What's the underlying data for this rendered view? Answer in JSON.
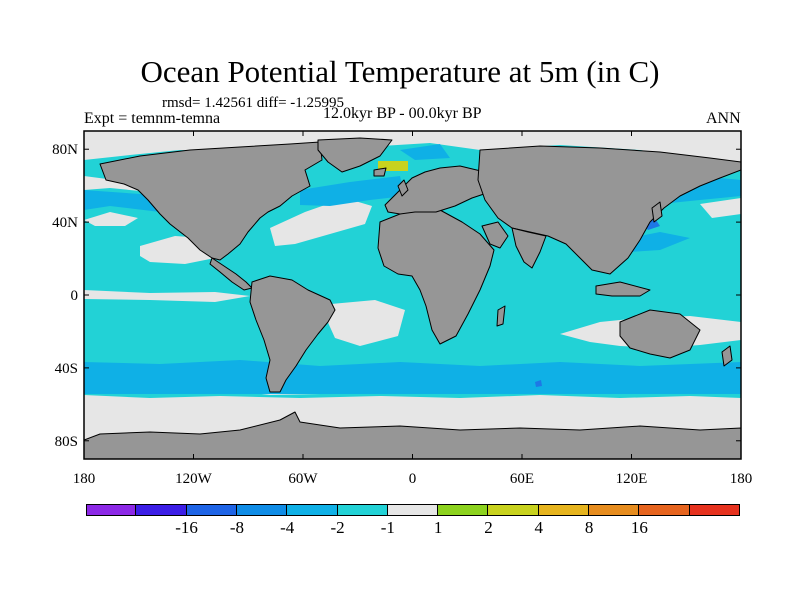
{
  "header": {
    "title": "Ocean Potential Temperature at 5m (in C)",
    "stats": "rmsd= 1.42561 diff= -1.25995",
    "experiment": "Expt = temnm-temna",
    "period": "12.0kyr BP - 00.0kyr BP",
    "season": "ANN"
  },
  "map": {
    "projection": "cylindrical equidistant",
    "lon_range": [
      -180,
      180
    ],
    "lat_range": [
      -90,
      90
    ],
    "x_ticks": [
      {
        "lon": -180,
        "label": "180"
      },
      {
        "lon": -120,
        "label": "120W"
      },
      {
        "lon": -60,
        "label": "60W"
      },
      {
        "lon": 0,
        "label": "0"
      },
      {
        "lon": 60,
        "label": "60E"
      },
      {
        "lon": 120,
        "label": "120E"
      },
      {
        "lon": 180,
        "label": "180"
      }
    ],
    "y_ticks": [
      {
        "lat": 80,
        "label": "80N"
      },
      {
        "lat": 40,
        "label": "40N"
      },
      {
        "lat": 0,
        "label": "0"
      },
      {
        "lat": -40,
        "label": "40S"
      },
      {
        "lat": -80,
        "label": "80S"
      }
    ],
    "colors": {
      "ocean_cooling_dominant": "#22d2d6",
      "ocean_small_change": "#e6e6e6",
      "ocean_moderate_cooling": "#0fb0e6",
      "ocean_strong_cooling": "#1e78e6",
      "land": "#969696",
      "warm_patch": "#c8d21e"
    }
  },
  "colorbar": {
    "colors": [
      "#8c28e6",
      "#3c1ee6",
      "#1e64e6",
      "#0f8ce6",
      "#0fb0e6",
      "#22d2d6",
      "#e6e6e6",
      "#8cd21e",
      "#c8d21e",
      "#e6b41e",
      "#e68c1e",
      "#e6641e",
      "#e6321e"
    ],
    "labels": [
      "-16",
      "-8",
      "-4",
      "-2",
      "-1",
      "1",
      "2",
      "4",
      "8",
      "16"
    ]
  }
}
